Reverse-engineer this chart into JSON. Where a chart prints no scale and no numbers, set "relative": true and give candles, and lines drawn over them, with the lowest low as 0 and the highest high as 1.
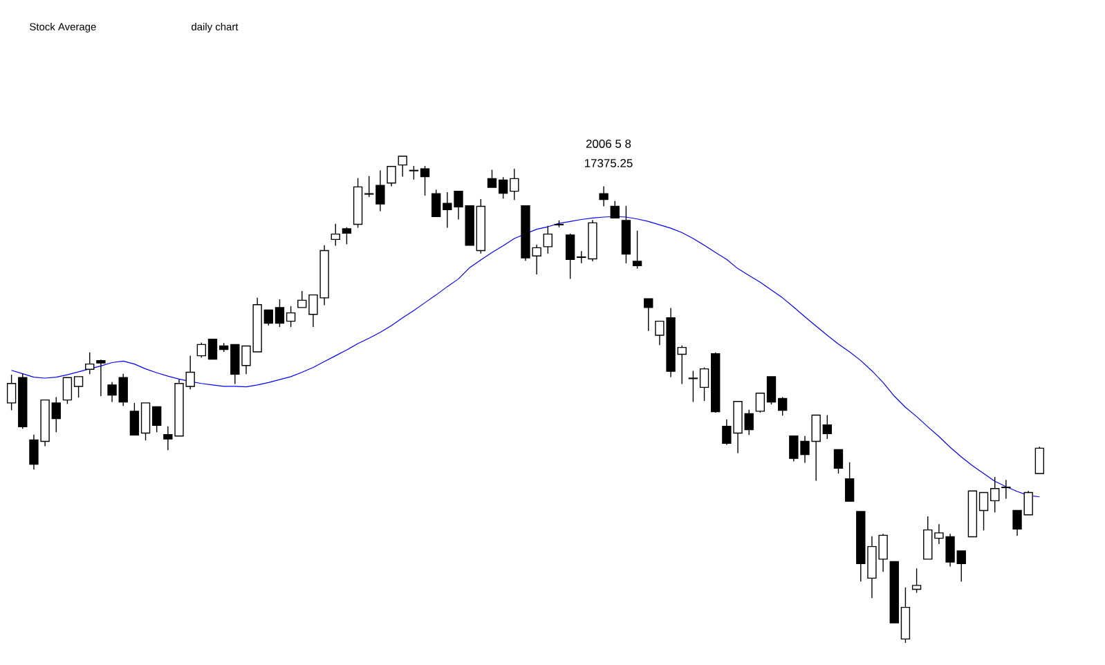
{
  "chart_data": {
    "type": "candlestick",
    "title": "Stock Average",
    "subtitle": "daily chart",
    "annotations": [
      "2006 5 8",
      "17375.25"
    ],
    "relative": true,
    "tick_labels": false,
    "categories": [
      null,
      null,
      null,
      null,
      null,
      null,
      null,
      null,
      null,
      null,
      null,
      null,
      null,
      null,
      null,
      null,
      null,
      null,
      null,
      null,
      null,
      null,
      null,
      null,
      null,
      null,
      null,
      null,
      null,
      null,
      null,
      null,
      null,
      null,
      null,
      null,
      null,
      null,
      null,
      null,
      null,
      null,
      null,
      null,
      null,
      null,
      null,
      null,
      null,
      null,
      null,
      null,
      null,
      null,
      null,
      null,
      null,
      null,
      null,
      null,
      null,
      null,
      null,
      null,
      null,
      null,
      null,
      null,
      null,
      null,
      null,
      null,
      null,
      null,
      null,
      null,
      null,
      null,
      null,
      null,
      null,
      null,
      null,
      null,
      null,
      null,
      null,
      null,
      null,
      null,
      null,
      null,
      null
    ],
    "ohlc": [
      [
        0.493,
        0.551,
        0.478,
        0.533
      ],
      [
        0.545,
        0.554,
        0.44,
        0.444
      ],
      [
        0.417,
        0.428,
        0.356,
        0.367
      ],
      [
        0.414,
        0.499,
        0.404,
        0.499
      ],
      [
        0.493,
        0.505,
        0.433,
        0.461
      ],
      [
        0.499,
        0.545,
        0.491,
        0.545
      ],
      [
        0.527,
        0.547,
        0.504,
        0.547
      ],
      [
        0.562,
        0.597,
        0.552,
        0.573
      ],
      [
        0.58,
        0.582,
        0.507,
        0.575
      ],
      [
        0.53,
        0.536,
        0.495,
        0.509
      ],
      [
        0.545,
        0.553,
        0.487,
        0.495
      ],
      [
        0.476,
        0.493,
        0.427,
        0.427
      ],
      [
        0.431,
        0.493,
        0.416,
        0.493
      ],
      [
        0.485,
        0.485,
        0.433,
        0.447
      ],
      [
        0.428,
        0.445,
        0.396,
        0.419
      ],
      [
        0.425,
        0.541,
        0.425,
        0.533
      ],
      [
        0.527,
        0.59,
        0.521,
        0.556
      ],
      [
        0.59,
        0.617,
        0.586,
        0.613
      ],
      [
        0.624,
        0.624,
        0.583,
        0.583
      ],
      [
        0.61,
        0.616,
        0.598,
        0.603
      ],
      [
        0.613,
        0.613,
        0.532,
        0.552
      ],
      [
        0.57,
        0.61,
        0.552,
        0.61
      ],
      [
        0.598,
        0.709,
        0.598,
        0.695
      ],
      [
        0.684,
        0.684,
        0.652,
        0.657
      ],
      [
        0.689,
        0.706,
        0.649,
        0.657
      ],
      [
        0.661,
        0.692,
        0.649,
        0.678
      ],
      [
        0.689,
        0.723,
        0.689,
        0.704
      ],
      [
        0.675,
        0.715,
        0.649,
        0.715
      ],
      [
        0.709,
        0.817,
        0.694,
        0.806
      ],
      [
        0.829,
        0.861,
        0.816,
        0.84
      ],
      [
        0.851,
        0.854,
        0.819,
        0.842
      ],
      [
        0.86,
        0.955,
        0.853,
        0.937
      ],
      [
        0.922,
        0.959,
        0.916,
        0.923
      ],
      [
        0.94,
        0.971,
        0.887,
        0.902
      ],
      [
        0.945,
        0.979,
        0.938,
        0.979
      ],
      [
        0.982,
        1.0,
        0.958,
        1.0
      ],
      [
        0.97,
        0.98,
        0.952,
        0.971
      ],
      [
        0.974,
        0.98,
        0.919,
        0.958
      ],
      [
        0.923,
        0.931,
        0.876,
        0.876
      ],
      [
        0.903,
        0.926,
        0.853,
        0.89
      ],
      [
        0.928,
        0.928,
        0.87,
        0.896
      ],
      [
        0.898,
        0.898,
        0.817,
        0.817
      ],
      [
        0.806,
        0.912,
        0.8,
        0.897
      ],
      [
        0.954,
        0.972,
        0.936,
        0.936
      ],
      [
        0.951,
        0.957,
        0.913,
        0.924
      ],
      [
        0.928,
        0.974,
        0.91,
        0.954
      ],
      [
        0.898,
        0.898,
        0.785,
        0.791
      ],
      [
        0.795,
        0.818,
        0.757,
        0.812
      ],
      [
        0.814,
        0.857,
        0.8,
        0.84
      ],
      [
        0.859,
        0.868,
        0.854,
        0.86
      ],
      [
        0.838,
        0.841,
        0.748,
        0.788
      ],
      [
        0.792,
        0.805,
        0.78,
        0.793
      ],
      [
        0.789,
        0.869,
        0.784,
        0.863
      ],
      [
        0.923,
        0.938,
        0.897,
        0.911
      ],
      [
        0.897,
        0.908,
        0.873,
        0.873
      ],
      [
        0.868,
        0.898,
        0.78,
        0.799
      ],
      [
        0.784,
        0.847,
        0.769,
        0.775
      ],
      [
        0.707,
        0.707,
        0.641,
        0.689
      ],
      [
        0.632,
        0.661,
        0.612,
        0.661
      ],
      [
        0.668,
        0.688,
        0.546,
        0.558
      ],
      [
        0.593,
        0.611,
        0.532,
        0.607
      ],
      [
        0.543,
        0.559,
        0.495,
        0.544
      ],
      [
        0.525,
        0.566,
        0.497,
        0.563
      ],
      [
        0.594,
        0.597,
        0.473,
        0.475
      ],
      [
        0.445,
        0.459,
        0.407,
        0.41
      ],
      [
        0.431,
        0.496,
        0.39,
        0.496
      ],
      [
        0.471,
        0.479,
        0.427,
        0.438
      ],
      [
        0.476,
        0.513,
        0.473,
        0.513
      ],
      [
        0.547,
        0.547,
        0.49,
        0.495
      ],
      [
        0.502,
        0.505,
        0.467,
        0.478
      ],
      [
        0.425,
        0.425,
        0.373,
        0.379
      ],
      [
        0.414,
        0.425,
        0.37,
        0.387
      ],
      [
        0.414,
        0.468,
        0.333,
        0.468
      ],
      [
        0.448,
        0.468,
        0.419,
        0.43
      ],
      [
        0.397,
        0.397,
        0.348,
        0.359
      ],
      [
        0.337,
        0.371,
        0.291,
        0.291
      ],
      [
        0.27,
        0.27,
        0.126,
        0.163
      ],
      [
        0.133,
        0.219,
        0.092,
        0.198
      ],
      [
        0.172,
        0.224,
        0.146,
        0.221
      ],
      [
        0.167,
        0.167,
        0.041,
        0.041
      ],
      [
        0.008,
        0.114,
        0,
        0.073
      ],
      [
        0.11,
        0.153,
        0.103,
        0.118
      ],
      [
        0.172,
        0.26,
        0.172,
        0.232
      ],
      [
        0.215,
        0.244,
        0.203,
        0.226
      ],
      [
        0.218,
        0.224,
        0.157,
        0.166
      ],
      [
        0.189,
        0.189,
        0.126,
        0.163
      ],
      [
        0.218,
        0.312,
        0.218,
        0.312
      ],
      [
        0.272,
        0.309,
        0.231,
        0.309
      ],
      [
        0.292,
        0.341,
        0.268,
        0.317
      ],
      [
        0.319,
        0.335,
        0.296,
        0.32
      ],
      [
        0.272,
        0.272,
        0.22,
        0.234
      ],
      [
        0.263,
        0.312,
        0.263,
        0.309
      ],
      [
        0.348,
        0.403,
        0.348,
        0.4
      ]
    ],
    "series": [
      {
        "type": "line",
        "color": "#0000ff",
        "values": [
          0.56,
          0.553,
          0.546,
          0.544,
          0.546,
          0.551,
          0.557,
          0.563,
          0.569,
          0.576,
          0.579,
          0.573,
          0.563,
          0.555,
          0.548,
          0.542,
          0.537,
          0.533,
          0.53,
          0.527,
          0.527,
          0.526,
          0.53,
          0.535,
          0.541,
          0.547,
          0.556,
          0.566,
          0.578,
          0.59,
          0.602,
          0.615,
          0.626,
          0.638,
          0.652,
          0.668,
          0.683,
          0.699,
          0.715,
          0.732,
          0.748,
          0.771,
          0.787,
          0.802,
          0.816,
          0.831,
          null,
          0.85,
          0.855,
          0.862,
          0.866,
          0.87,
          0.873,
          0.875,
          0.876,
          0.875,
          0.871,
          0.866,
          0.859,
          0.852,
          0.843,
          0.831,
          0.817,
          0.802,
          0.788,
          0.769,
          0.755,
          0.741,
          0.725,
          0.709,
          0.69,
          0.67,
          0.651,
          0.632,
          0.614,
          0.598,
          0.58,
          0.559,
          0.535,
          0.507,
          0.484,
          0.465,
          0.444,
          0.424,
          0.402,
          0.382,
          0.364,
          0.348,
          0.332,
          0.321,
          0.311,
          0.303,
          0.3
        ]
      }
    ]
  }
}
